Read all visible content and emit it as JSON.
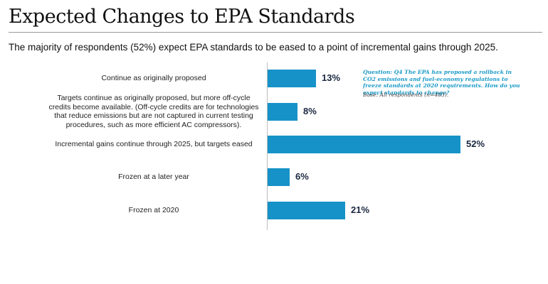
{
  "title": "Expected Changes to EPA Standards",
  "subtitle": "The majority of respondents (52%) expect EPA standards to be eased to a point of incremental gains through 2025.",
  "note": {
    "question": "Question: Q4 The EPA has proposed a rollback in CO2 emissions and fuel-economy regulations to freeze standards at 2020 requirements. How do you expect standards to change?",
    "base": "Base: All respondents (n=483)."
  },
  "colors": {
    "bar": "#1692c8",
    "value_text": "#1a2740",
    "note": "#1b9bc8"
  },
  "chart_data": {
    "type": "bar",
    "orientation": "horizontal",
    "categories": [
      "Continue as originally proposed",
      "Targets continue as originally proposed, but more off-cycle credits become available. (Off-cycle credits are for technologies that reduce emissions but are not captured in current testing procedures, such as more efficient AC compressors).",
      "Incremental gains continue through 2025, but targets eased",
      "Frozen at a later year",
      "Frozen at 2020"
    ],
    "values": [
      13,
      8,
      52,
      6,
      21
    ],
    "value_labels": [
      "13%",
      "8%",
      "52%",
      "6%",
      "21%"
    ],
    "xlim": [
      0,
      52
    ],
    "grid": false,
    "legend": "none"
  }
}
